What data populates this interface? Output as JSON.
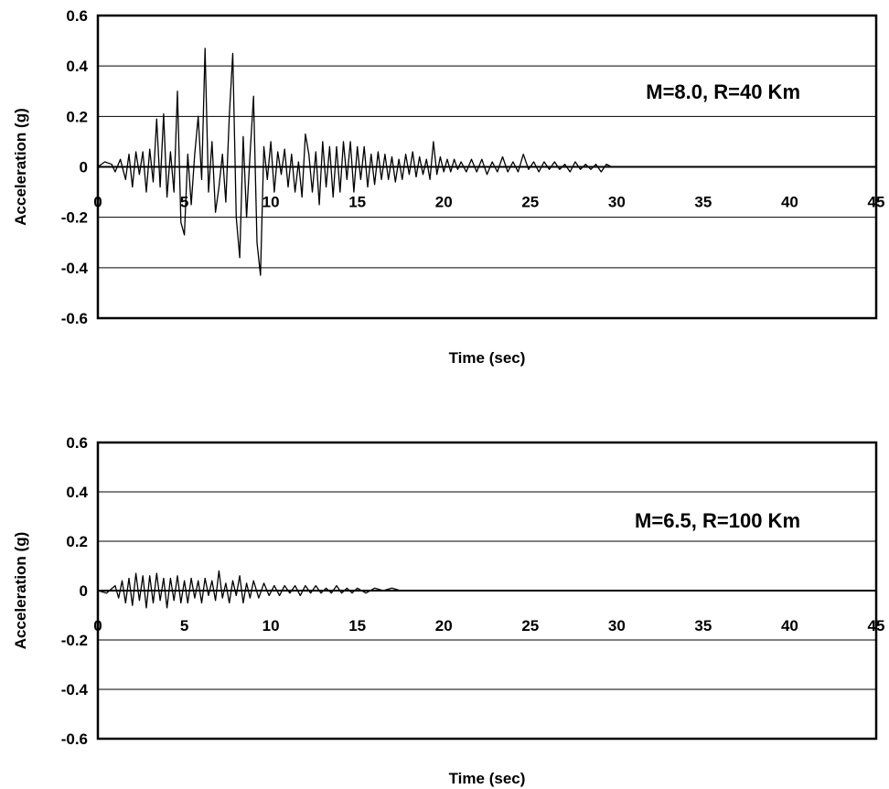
{
  "chart_data": [
    {
      "type": "line",
      "xlabel": "Time (sec)",
      "ylabel": "Acceleration (g)",
      "annotation": "M=8.0, R=40 Km",
      "xlim": [
        0,
        45
      ],
      "ylim": [
        -0.6,
        0.6
      ],
      "x_ticks": [
        "0",
        "5",
        "10",
        "15",
        "20",
        "25",
        "30",
        "35",
        "40",
        "45"
      ],
      "y_ticks": [
        "0.6",
        "0.4",
        "0.2",
        "0",
        "-0.2",
        "-0.4",
        "-0.6"
      ],
      "grid": true,
      "series": [
        {
          "x": [
            0,
            0.4,
            0.8,
            1.0,
            1.3,
            1.6,
            1.8,
            2.0,
            2.2,
            2.4,
            2.6,
            2.8,
            3.0,
            3.2,
            3.4,
            3.6,
            3.8,
            4.0,
            4.2,
            4.4,
            4.6,
            4.8,
            5.0,
            5.2,
            5.4,
            5.6,
            5.8,
            6.0,
            6.2,
            6.4,
            6.6,
            6.8,
            7.0,
            7.2,
            7.4,
            7.6,
            7.8,
            8.0,
            8.2,
            8.4,
            8.6,
            8.8,
            9.0,
            9.2,
            9.4,
            9.6,
            9.8,
            10.0,
            10.2,
            10.4,
            10.6,
            10.8,
            11.0,
            11.2,
            11.4,
            11.6,
            11.8,
            12.0,
            12.2,
            12.4,
            12.6,
            12.8,
            13.0,
            13.2,
            13.4,
            13.6,
            13.8,
            14.0,
            14.2,
            14.4,
            14.6,
            14.8,
            15.0,
            15.2,
            15.4,
            15.6,
            15.8,
            16.0,
            16.2,
            16.4,
            16.6,
            16.8,
            17.0,
            17.2,
            17.4,
            17.6,
            17.8,
            18.0,
            18.2,
            18.4,
            18.6,
            18.8,
            19.0,
            19.2,
            19.4,
            19.6,
            19.8,
            20.0,
            20.2,
            20.4,
            20.6,
            20.8,
            21.0,
            21.3,
            21.6,
            21.9,
            22.2,
            22.5,
            22.8,
            23.1,
            23.4,
            23.7,
            24.0,
            24.3,
            24.6,
            24.9,
            25.2,
            25.5,
            25.8,
            26.1,
            26.4,
            26.7,
            27.0,
            27.3,
            27.6,
            27.9,
            28.2,
            28.5,
            28.8,
            29.1,
            29.4,
            29.7,
            30.0,
            32,
            35,
            38,
            41,
            45
          ],
          "y": [
            0,
            0.02,
            0.01,
            -0.02,
            0.03,
            -0.05,
            0.05,
            -0.08,
            0.06,
            -0.03,
            0.06,
            -0.1,
            0.07,
            -0.06,
            0.19,
            -0.08,
            0.21,
            -0.12,
            0.06,
            -0.1,
            0.3,
            -0.22,
            -0.27,
            0.05,
            -0.15,
            0.05,
            0.2,
            -0.05,
            0.47,
            -0.1,
            0.1,
            -0.18,
            -0.08,
            0.05,
            -0.14,
            0.2,
            0.45,
            -0.2,
            -0.36,
            0.12,
            -0.2,
            0.05,
            0.28,
            -0.3,
            -0.43,
            0.08,
            -0.05,
            0.1,
            -0.1,
            0.06,
            -0.03,
            0.07,
            -0.08,
            0.05,
            -0.1,
            0.02,
            -0.12,
            0.13,
            0.05,
            -0.1,
            0.06,
            -0.15,
            0.1,
            -0.08,
            0.08,
            -0.12,
            0.08,
            -0.1,
            0.1,
            -0.05,
            0.1,
            -0.1,
            0.08,
            -0.05,
            0.08,
            -0.08,
            0.05,
            -0.07,
            0.06,
            -0.05,
            0.05,
            -0.05,
            0.04,
            -0.06,
            0.03,
            -0.05,
            0.05,
            -0.03,
            0.06,
            -0.04,
            0.04,
            -0.03,
            0.03,
            -0.05,
            0.1,
            -0.03,
            0.04,
            -0.02,
            0.03,
            -0.02,
            0.03,
            -0.01,
            0.02,
            -0.02,
            0.03,
            -0.02,
            0.03,
            -0.03,
            0.02,
            -0.02,
            0.04,
            -0.02,
            0.02,
            -0.02,
            0.05,
            -0.01,
            0.02,
            -0.02,
            0.02,
            -0.01,
            0.02,
            -0.01,
            0.01,
            -0.02,
            0.02,
            -0.01,
            0.01,
            -0.01,
            0.01,
            -0.02,
            0.01,
            0,
            0,
            0,
            0,
            0,
            0,
            0
          ]
        }
      ]
    },
    {
      "type": "line",
      "xlabel": "Time (sec)",
      "ylabel": "Acceleration (g)",
      "annotation": "M=6.5, R=100 Km",
      "xlim": [
        0,
        45
      ],
      "ylim": [
        -0.6,
        0.6
      ],
      "x_ticks": [
        "0",
        "5",
        "10",
        "15",
        "20",
        "25",
        "30",
        "35",
        "40",
        "45"
      ],
      "y_ticks": [
        "0.6",
        "0.4",
        "0.2",
        "0",
        "-0.2",
        "-0.4",
        "-0.6"
      ],
      "grid": true,
      "series": [
        {
          "x": [
            0,
            0.5,
            1.0,
            1.2,
            1.4,
            1.6,
            1.8,
            2.0,
            2.2,
            2.4,
            2.6,
            2.8,
            3.0,
            3.2,
            3.4,
            3.6,
            3.8,
            4.0,
            4.2,
            4.4,
            4.6,
            4.8,
            5.0,
            5.2,
            5.4,
            5.6,
            5.8,
            6.0,
            6.2,
            6.4,
            6.6,
            6.8,
            7.0,
            7.2,
            7.4,
            7.6,
            7.8,
            8.0,
            8.2,
            8.4,
            8.6,
            8.8,
            9.0,
            9.3,
            9.6,
            9.9,
            10.2,
            10.5,
            10.8,
            11.1,
            11.4,
            11.7,
            12.0,
            12.3,
            12.6,
            12.9,
            13.2,
            13.5,
            13.8,
            14.1,
            14.4,
            14.7,
            15.0,
            15.5,
            16.0,
            16.5,
            17.0,
            17.5,
            18.0,
            20,
            25,
            30,
            35,
            40,
            45
          ],
          "y": [
            0,
            -0.01,
            0.02,
            -0.03,
            0.04,
            -0.05,
            0.05,
            -0.06,
            0.07,
            -0.04,
            0.06,
            -0.07,
            0.06,
            -0.05,
            0.07,
            -0.04,
            0.05,
            -0.07,
            0.05,
            -0.04,
            0.06,
            -0.05,
            0.04,
            -0.05,
            0.05,
            -0.03,
            0.04,
            -0.05,
            0.05,
            -0.02,
            0.04,
            -0.04,
            0.08,
            -0.03,
            0.03,
            -0.05,
            0.04,
            -0.02,
            0.06,
            -0.05,
            0.03,
            -0.03,
            0.04,
            -0.03,
            0.03,
            -0.02,
            0.02,
            -0.02,
            0.02,
            -0.01,
            0.02,
            -0.02,
            0.02,
            -0.01,
            0.02,
            -0.01,
            0.01,
            -0.01,
            0.02,
            -0.01,
            0.01,
            -0.01,
            0.01,
            -0.01,
            0.01,
            0,
            0.01,
            0,
            0,
            0,
            0,
            0,
            0,
            0,
            0
          ]
        }
      ]
    }
  ]
}
